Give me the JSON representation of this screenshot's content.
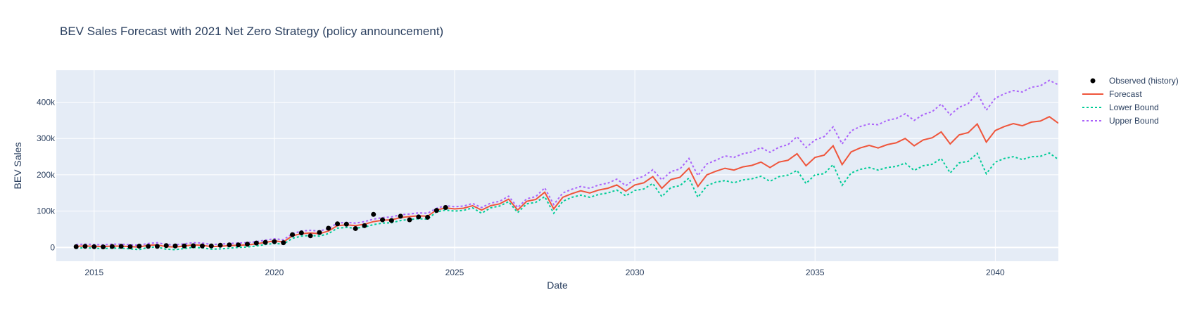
{
  "chart_data": {
    "type": "line",
    "title": "BEV Sales Forecast with 2021 Net Zero Strategy (policy announcement)",
    "xlabel": "Date",
    "ylabel": "BEV Sales",
    "xlim": [
      2013.95,
      2041.75
    ],
    "ylim": [
      -38000,
      488000
    ],
    "x_ticks": [
      2015,
      2020,
      2025,
      2030,
      2035,
      2040
    ],
    "x_tick_labels": [
      "2015",
      "2020",
      "2025",
      "2030",
      "2035",
      "2040"
    ],
    "y_ticks": [
      0,
      100000,
      200000,
      300000,
      400000
    ],
    "y_tick_labels": [
      "0",
      "100k",
      "200k",
      "300k",
      "400k"
    ],
    "grid": true,
    "legend_position": "top-right",
    "colors": {
      "observed": "#000000",
      "forecast": "#ef553b",
      "lower": "#00cc96",
      "upper": "#ab63fa",
      "plot_bg": "#e5ecf6",
      "grid": "#ffffff",
      "text": "#2a3f5f"
    },
    "legend": [
      {
        "name": "Observed (history)",
        "key": "observed",
        "style": "marker"
      },
      {
        "name": "Forecast",
        "key": "forecast",
        "style": "solid"
      },
      {
        "name": "Lower Bound",
        "key": "lower",
        "style": "dot"
      },
      {
        "name": "Upper Bound",
        "key": "upper",
        "style": "dot"
      }
    ],
    "observed": {
      "name": "Observed (history)",
      "x": [
        2014.5,
        2014.75,
        2015.0,
        2015.25,
        2015.5,
        2015.75,
        2016.0,
        2016.25,
        2016.5,
        2016.75,
        2017.0,
        2017.25,
        2017.5,
        2017.75,
        2018.0,
        2018.25,
        2018.5,
        2018.75,
        2019.0,
        2019.25,
        2019.5,
        2019.75,
        2020.0,
        2020.25,
        2020.5,
        2020.75,
        2021.0,
        2021.25,
        2021.5,
        2021.75,
        2022.0,
        2022.25,
        2022.5,
        2022.75,
        2023.0,
        2023.25,
        2023.5,
        2023.75,
        2024.0,
        2024.25,
        2024.5,
        2024.75
      ],
      "y": [
        2000,
        3000,
        2000,
        1500,
        2500,
        3000,
        2000,
        3500,
        3000,
        3000,
        5000,
        4000,
        4000,
        4500,
        4000,
        4000,
        6000,
        7000,
        7000,
        9000,
        12000,
        14000,
        16000,
        13000,
        35000,
        40000,
        32000,
        41000,
        53000,
        65000,
        64000,
        52000,
        60000,
        91000,
        76000,
        74000,
        86000,
        76000,
        84000,
        83000,
        102000,
        110000
      ]
    },
    "forecast": {
      "name": "Forecast",
      "x": [
        2014.5,
        2014.75,
        2015.0,
        2015.25,
        2015.5,
        2015.75,
        2016.0,
        2016.25,
        2016.5,
        2016.75,
        2017.0,
        2017.25,
        2017.5,
        2017.75,
        2018.0,
        2018.25,
        2018.5,
        2018.75,
        2019.0,
        2019.25,
        2019.5,
        2019.75,
        2020.0,
        2020.25,
        2020.5,
        2020.75,
        2021.0,
        2021.25,
        2021.5,
        2021.75,
        2022.0,
        2022.25,
        2022.5,
        2022.75,
        2023.0,
        2023.25,
        2023.5,
        2023.75,
        2024.0,
        2024.25,
        2024.5,
        2024.75,
        2025.0,
        2025.25,
        2025.5,
        2025.75,
        2026.0,
        2026.25,
        2026.5,
        2026.75,
        2027.0,
        2027.25,
        2027.5,
        2027.75,
        2028.0,
        2028.25,
        2028.5,
        2028.75,
        2029.0,
        2029.25,
        2029.5,
        2029.75,
        2030.0,
        2030.25,
        2030.5,
        2030.75,
        2031.0,
        2031.25,
        2031.5,
        2031.75,
        2032.0,
        2032.25,
        2032.5,
        2032.75,
        2033.0,
        2033.25,
        2033.5,
        2033.75,
        2034.0,
        2034.25,
        2034.5,
        2034.75,
        2035.0,
        2035.25,
        2035.5,
        2035.75,
        2036.0,
        2036.25,
        2036.5,
        2036.75,
        2037.0,
        2037.25,
        2037.5,
        2037.75,
        2038.0,
        2038.25,
        2038.5,
        2038.75,
        2039.0,
        2039.25,
        2039.5,
        2039.75,
        2040.0,
        2040.25,
        2040.5,
        2040.75,
        2041.0,
        2041.25,
        2041.5,
        2041.75
      ],
      "y": [
        3000,
        4000,
        3000,
        2500,
        3500,
        3500,
        2000,
        1000,
        6000,
        7000,
        2000,
        1000,
        4000,
        7000,
        6000,
        2000,
        3000,
        5000,
        6000,
        7000,
        10000,
        14000,
        18000,
        15000,
        32000,
        38000,
        40000,
        38000,
        45000,
        60000,
        62000,
        60000,
        64000,
        71000,
        75000,
        76000,
        82000,
        85000,
        87000,
        86000,
        103000,
        109000,
        106000,
        108000,
        115000,
        103000,
        115000,
        120000,
        133000,
        103000,
        127000,
        132000,
        152000,
        106000,
        138000,
        148000,
        156000,
        150000,
        158000,
        163000,
        172000,
        155000,
        172000,
        178000,
        195000,
        163000,
        187000,
        193000,
        218000,
        168000,
        200000,
        210000,
        218000,
        213000,
        222000,
        226000,
        235000,
        220000,
        235000,
        240000,
        258000,
        225000,
        248000,
        254000,
        280000,
        228000,
        263000,
        274000,
        281000,
        274000,
        283000,
        288000,
        300000,
        280000,
        296000,
        302000,
        318000,
        285000,
        310000,
        316000,
        340000,
        290000,
        322000,
        333000,
        341000,
        335000,
        345000,
        348000,
        360000,
        342000
      ]
    },
    "lower": {
      "name": "Lower Bound",
      "x": [
        2014.5,
        2014.75,
        2015.0,
        2015.25,
        2015.5,
        2015.75,
        2016.0,
        2016.25,
        2016.5,
        2016.75,
        2017.0,
        2017.25,
        2017.5,
        2017.75,
        2018.0,
        2018.25,
        2018.5,
        2018.75,
        2019.0,
        2019.25,
        2019.5,
        2019.75,
        2020.0,
        2020.25,
        2020.5,
        2020.75,
        2021.0,
        2021.25,
        2021.5,
        2021.75,
        2022.0,
        2022.25,
        2022.5,
        2022.75,
        2023.0,
        2023.25,
        2023.5,
        2023.75,
        2024.0,
        2024.25,
        2024.5,
        2024.75,
        2025.0,
        2025.25,
        2025.5,
        2025.75,
        2026.0,
        2026.25,
        2026.5,
        2026.75,
        2027.0,
        2027.25,
        2027.5,
        2027.75,
        2028.0,
        2028.25,
        2028.5,
        2028.75,
        2029.0,
        2029.25,
        2029.5,
        2029.75,
        2030.0,
        2030.25,
        2030.5,
        2030.75,
        2031.0,
        2031.25,
        2031.5,
        2031.75,
        2032.0,
        2032.25,
        2032.5,
        2032.75,
        2033.0,
        2033.25,
        2033.5,
        2033.75,
        2034.0,
        2034.25,
        2034.5,
        2034.75,
        2035.0,
        2035.25,
        2035.5,
        2035.75,
        2036.0,
        2036.25,
        2036.5,
        2036.75,
        2037.0,
        2037.25,
        2037.5,
        2037.75,
        2038.0,
        2038.25,
        2038.5,
        2038.75,
        2039.0,
        2039.25,
        2039.5,
        2039.75,
        2040.0,
        2040.25,
        2040.5,
        2040.75,
        2041.0,
        2041.25,
        2041.5,
        2041.75
      ],
      "y": [
        -2000,
        -1000,
        -2000,
        -3000,
        -2000,
        -2000,
        -4000,
        -6000,
        0,
        1000,
        -5000,
        -6000,
        -3000,
        0,
        -1000,
        -5000,
        -4000,
        -2000,
        0,
        1000,
        4000,
        8000,
        11000,
        9000,
        25000,
        31000,
        33000,
        31000,
        38000,
        53000,
        55000,
        53000,
        56000,
        63000,
        67000,
        68000,
        74000,
        77000,
        79000,
        78000,
        98000,
        103000,
        100000,
        102000,
        109000,
        94000,
        109000,
        114000,
        126000,
        96000,
        120000,
        124000,
        140000,
        94000,
        127000,
        138000,
        144000,
        138000,
        146000,
        150000,
        158000,
        142000,
        157000,
        161000,
        176000,
        140000,
        165000,
        170000,
        191000,
        138000,
        170000,
        180000,
        184000,
        178000,
        186000,
        189000,
        196000,
        182000,
        195000,
        199000,
        212000,
        176000,
        200000,
        203000,
        228000,
        171000,
        205000,
        215000,
        220000,
        213000,
        220000,
        223000,
        232000,
        212000,
        225000,
        229000,
        245000,
        205000,
        233000,
        237000,
        259000,
        203000,
        235000,
        245000,
        250000,
        242000,
        250000,
        251000,
        260000,
        242000
      ]
    },
    "upper": {
      "name": "Upper Bound",
      "x": [
        2014.5,
        2014.75,
        2015.0,
        2015.25,
        2015.5,
        2015.75,
        2016.0,
        2016.25,
        2016.5,
        2016.75,
        2017.0,
        2017.25,
        2017.5,
        2017.75,
        2018.0,
        2018.25,
        2018.5,
        2018.75,
        2019.0,
        2019.25,
        2019.5,
        2019.75,
        2020.0,
        2020.25,
        2020.5,
        2020.75,
        2021.0,
        2021.25,
        2021.5,
        2021.75,
        2022.0,
        2022.25,
        2022.5,
        2022.75,
        2023.0,
        2023.25,
        2023.5,
        2023.75,
        2024.0,
        2024.25,
        2024.5,
        2024.75,
        2025.0,
        2025.25,
        2025.5,
        2025.75,
        2026.0,
        2026.25,
        2026.5,
        2026.75,
        2027.0,
        2027.25,
        2027.5,
        2027.75,
        2028.0,
        2028.25,
        2028.5,
        2028.75,
        2029.0,
        2029.25,
        2029.5,
        2029.75,
        2030.0,
        2030.25,
        2030.5,
        2030.75,
        2031.0,
        2031.25,
        2031.5,
        2031.75,
        2032.0,
        2032.25,
        2032.5,
        2032.75,
        2033.0,
        2033.25,
        2033.5,
        2033.75,
        2034.0,
        2034.25,
        2034.5,
        2034.75,
        2035.0,
        2035.25,
        2035.5,
        2035.75,
        2036.0,
        2036.25,
        2036.5,
        2036.75,
        2037.0,
        2037.25,
        2037.5,
        2037.75,
        2038.0,
        2038.25,
        2038.5,
        2038.75,
        2039.0,
        2039.25,
        2039.5,
        2039.75,
        2040.0,
        2040.25,
        2040.5,
        2040.75,
        2041.0,
        2041.25,
        2041.5,
        2041.75
      ],
      "y": [
        8000,
        9000,
        8000,
        7000,
        9000,
        9000,
        7000,
        6000,
        11000,
        13000,
        8000,
        7000,
        10000,
        13000,
        12000,
        8000,
        9000,
        11000,
        12000,
        13000,
        16000,
        20000,
        24000,
        21000,
        38000,
        45000,
        47000,
        45000,
        52000,
        67000,
        69000,
        67000,
        71000,
        78000,
        82000,
        84000,
        90000,
        92000,
        95000,
        94000,
        108000,
        115000,
        112000,
        114000,
        121000,
        110000,
        122000,
        127000,
        141000,
        110000,
        134000,
        140000,
        164000,
        118000,
        150000,
        160000,
        168000,
        163000,
        172000,
        177000,
        188000,
        170000,
        188000,
        196000,
        214000,
        186000,
        209000,
        216000,
        245000,
        198000,
        230000,
        240000,
        252000,
        248000,
        258000,
        263000,
        275000,
        262000,
        276000,
        283000,
        305000,
        275000,
        296000,
        305000,
        332000,
        285000,
        321000,
        333000,
        340000,
        338000,
        350000,
        355000,
        368000,
        350000,
        366000,
        374000,
        395000,
        365000,
        386000,
        396000,
        425000,
        378000,
        411000,
        423000,
        432000,
        428000,
        441000,
        445000,
        460000,
        448000
      ]
    }
  }
}
